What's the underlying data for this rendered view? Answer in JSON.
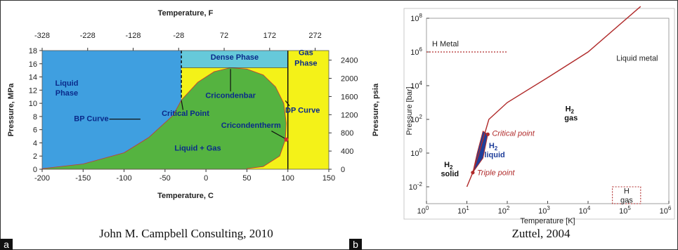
{
  "panels": [
    {
      "tag": "a",
      "caption": "John M. Campbell Consulting, 2010"
    },
    {
      "tag": "b",
      "caption": "Zuttel, 2004"
    }
  ],
  "chart_data": [
    {
      "type": "area",
      "top_axis": {
        "label": "Temperature, F",
        "ticks": [
          "-328",
          "-228",
          "-128",
          "-28",
          "72",
          "172",
          "272"
        ]
      },
      "bottom_axis": {
        "label": "Temperature, C",
        "ticks": [
          "-200",
          "-150",
          "-100",
          "-50",
          "0",
          "50",
          "100",
          "150"
        ],
        "range": [
          -200,
          150
        ]
      },
      "left_axis": {
        "label": "Pressure, MPa",
        "ticks": [
          "0",
          "2",
          "4",
          "6",
          "8",
          "10",
          "12",
          "14",
          "16",
          "18"
        ],
        "range": [
          0,
          18
        ]
      },
      "right_axis": {
        "label": "Pressure, psia",
        "ticks": [
          "0",
          "400",
          "800",
          "1200",
          "1600",
          "2000",
          "2400"
        ]
      },
      "regions": {
        "liquid": {
          "color": "#3f9fe0",
          "label_lines": [
            "Liquid",
            "Phase"
          ]
        },
        "dense": {
          "color": "#66c9da",
          "label": "Dense Phase"
        },
        "gas": {
          "color": "#f4f218",
          "label_lines": [
            "Gas",
            "Phase"
          ]
        },
        "two_phase": {
          "color": "#55b340",
          "label": "Liquid + Gas"
        }
      },
      "envelope": [
        [
          -200,
          0.1
        ],
        [
          -150,
          0.8
        ],
        [
          -100,
          2.5
        ],
        [
          -70,
          4.8
        ],
        [
          -40,
          8.2
        ],
        [
          -30,
          10.5
        ],
        [
          -10,
          13.2
        ],
        [
          10,
          14.8
        ],
        [
          30,
          15.4
        ],
        [
          50,
          15.2
        ],
        [
          70,
          14.3
        ],
        [
          85,
          12.5
        ],
        [
          95,
          10.0
        ],
        [
          98,
          7.0
        ],
        [
          97,
          4.5
        ],
        [
          90,
          2.0
        ],
        [
          70,
          0.4
        ],
        [
          50,
          0.1
        ]
      ],
      "critical_point": [
        -30,
        10.5
      ],
      "cricondenbar": [
        30,
        15.4
      ],
      "cricondentherm": [
        98,
        4.5
      ],
      "annotations": [
        "BP Curve",
        "Critical Point",
        "Cricondenbar",
        "DP Curve",
        "Cricondentherm"
      ]
    },
    {
      "type": "line",
      "x_scale": "log",
      "y_scale": "log",
      "xlabel": "Temperature [K]",
      "ylabel": "Pressure [bar]",
      "x_ticks": [
        "10^0",
        "10^1",
        "10^2",
        "10^3",
        "10^4",
        "10^5",
        "10^6"
      ],
      "y_ticks": [
        "10^-2",
        "10^0",
        "10^2",
        "10^4",
        "10^6",
        "10^8"
      ],
      "xlim": [
        1,
        1000000
      ],
      "ylim": [
        0.001,
        100000000
      ],
      "melting_line": [
        [
          10,
          0.01
        ],
        [
          14,
          0.07
        ],
        [
          20,
          1
        ],
        [
          35,
          100
        ],
        [
          100,
          1000
        ],
        [
          1000,
          30000
        ],
        [
          10000,
          1000000
        ],
        [
          200000,
          500000000
        ]
      ],
      "liquid_region": {
        "color": "#1f3f99",
        "vertices": [
          [
            14,
            0.07
          ],
          [
            18,
            1
          ],
          [
            25,
            20
          ],
          [
            33,
            13
          ],
          [
            25,
            0.5
          ],
          [
            14,
            0.07
          ]
        ]
      },
      "points": {
        "critical": [
          33,
          13
        ],
        "triple": [
          14,
          0.07
        ]
      },
      "labels": {
        "h_metal": "H Metal",
        "liquid_metal": "Liquid metal",
        "h2_gas": [
          "H",
          "2",
          "gas"
        ],
        "h2_solid": [
          "H",
          "2",
          "solid"
        ],
        "h2_liquid": [
          "H",
          "2",
          "liquid"
        ],
        "h_gas": [
          "H",
          "gas"
        ],
        "critical_point": "Critical point",
        "triple_point": "Triple point"
      }
    }
  ]
}
